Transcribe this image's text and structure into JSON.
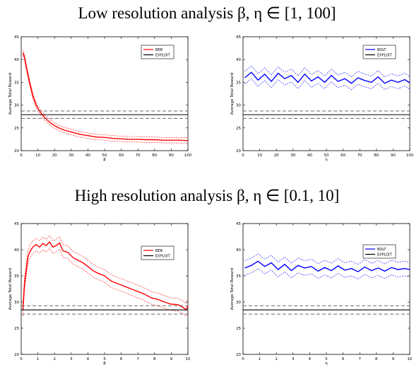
{
  "headings": {
    "low": "Low resolution analysis β, η ∈ [1, 100]",
    "high": "High resolution analysis β, η ∈ [0.1, 10]"
  },
  "colors": {
    "beb": "#ff0000",
    "bolt": "#0000ff",
    "exploit": "#000000",
    "exploit_band": "#555555"
  },
  "chart_data": [
    {
      "type": "line",
      "id": "low-beb",
      "xlabel": "β",
      "ylabel": "Average Total Reward",
      "xlim": [
        0,
        100
      ],
      "ylim": [
        20,
        45
      ],
      "xticks": [
        0,
        10,
        20,
        30,
        40,
        50,
        60,
        70,
        80,
        90,
        100
      ],
      "yticks": [
        20,
        25,
        30,
        35,
        40,
        45
      ],
      "legend": {
        "placement": "top-right",
        "entries": [
          "BEB",
          "EXPLOIT"
        ]
      },
      "series": [
        {
          "name": "BEB",
          "color": "#ff0000",
          "band": 0.6,
          "x": [
            1,
            2,
            3,
            4,
            5,
            6,
            7,
            8,
            9,
            10,
            12,
            14,
            16,
            18,
            20,
            23,
            26,
            30,
            35,
            40,
            45,
            50,
            55,
            60,
            65,
            70,
            75,
            80,
            85,
            90,
            95,
            100
          ],
          "y": [
            41.5,
            40.5,
            38.5,
            36.8,
            35.0,
            33.5,
            32.0,
            31.0,
            30.0,
            29.3,
            28.2,
            27.3,
            26.6,
            26.0,
            25.5,
            24.9,
            24.5,
            24.1,
            23.6,
            23.3,
            23.0,
            22.9,
            22.7,
            22.6,
            22.5,
            22.5,
            22.4,
            22.4,
            22.3,
            22.3,
            22.3,
            22.2
          ]
        },
        {
          "name": "EXPLOIT",
          "color": "#000000",
          "constant": 27.9,
          "band": 0.8
        }
      ]
    },
    {
      "type": "line",
      "id": "low-bolt",
      "xlabel": "η",
      "ylabel": "Average Total Reward",
      "xlim": [
        0,
        100
      ],
      "ylim": [
        20,
        45
      ],
      "xticks": [
        0,
        10,
        20,
        30,
        40,
        50,
        60,
        70,
        80,
        90,
        100
      ],
      "yticks": [
        20,
        25,
        30,
        35,
        40,
        45
      ],
      "legend": {
        "placement": "top-right",
        "entries": [
          "BOLT",
          "EXPLOIT"
        ]
      },
      "series": [
        {
          "name": "BOLT",
          "color": "#0000ff",
          "band": 1.4,
          "x": [
            1,
            5,
            9,
            13,
            17,
            21,
            25,
            29,
            33,
            37,
            41,
            45,
            49,
            53,
            57,
            61,
            65,
            69,
            73,
            77,
            81,
            85,
            89,
            93,
            97,
            100
          ],
          "y": [
            36.0,
            37.2,
            35.5,
            36.8,
            35.2,
            37.0,
            35.8,
            36.5,
            35.0,
            36.8,
            35.3,
            36.2,
            35.0,
            36.5,
            35.2,
            35.8,
            34.8,
            36.0,
            35.4,
            35.0,
            36.2,
            34.8,
            35.5,
            35.0,
            35.6,
            34.9
          ]
        },
        {
          "name": "EXPLOIT",
          "color": "#000000",
          "constant": 27.9,
          "band": 0.8
        }
      ]
    },
    {
      "type": "line",
      "id": "high-beb",
      "xlabel": "β",
      "ylabel": "Average Total Reward",
      "xlim": [
        0,
        10
      ],
      "ylim": [
        20,
        45
      ],
      "xticks": [
        0,
        1,
        2,
        3,
        4,
        5,
        6,
        7,
        8,
        9,
        10
      ],
      "yticks": [
        20,
        25,
        30,
        35,
        40,
        45
      ],
      "legend": {
        "placement": "top-right",
        "entries": [
          "BEB",
          "EXPLOIT"
        ]
      },
      "series": [
        {
          "name": "BEB",
          "color": "#ff0000",
          "band": 1.2,
          "x": [
            0.1,
            0.2,
            0.3,
            0.4,
            0.5,
            0.7,
            0.9,
            1.1,
            1.3,
            1.5,
            1.7,
            1.9,
            2.1,
            2.3,
            2.5,
            2.8,
            3.1,
            3.4,
            3.7,
            4.0,
            4.3,
            4.6,
            5.0,
            5.4,
            5.8,
            6.2,
            6.6,
            7.0,
            7.4,
            7.8,
            8.2,
            8.6,
            9.0,
            9.4,
            9.7,
            9.9,
            10.0
          ],
          "y": [
            28.5,
            33.5,
            36.0,
            38.5,
            39.5,
            40.5,
            41.0,
            40.5,
            41.2,
            40.8,
            41.5,
            40.5,
            40.8,
            41.3,
            39.8,
            39.5,
            38.5,
            38.0,
            37.5,
            36.8,
            36.0,
            35.5,
            35.0,
            34.0,
            33.5,
            33.0,
            32.5,
            32.0,
            31.5,
            30.8,
            30.5,
            30.0,
            29.6,
            29.5,
            29.0,
            28.5,
            29.3
          ]
        },
        {
          "name": "EXPLOIT",
          "color": "#000000",
          "constant": 28.5,
          "band": 0.8
        }
      ]
    },
    {
      "type": "line",
      "id": "high-bolt",
      "xlabel": "η",
      "ylabel": "Average Total Reward",
      "xlim": [
        0,
        10
      ],
      "ylim": [
        20,
        45
      ],
      "xticks": [
        0,
        1,
        2,
        3,
        4,
        5,
        6,
        7,
        8,
        9,
        10
      ],
      "yticks": [
        20,
        25,
        30,
        35,
        40,
        45
      ],
      "legend": {
        "placement": "top-right",
        "entries": [
          "BOLT",
          "EXPLOIT"
        ]
      },
      "series": [
        {
          "name": "BOLT",
          "color": "#0000ff",
          "band": 1.4,
          "x": [
            0.1,
            0.5,
            0.9,
            1.3,
            1.7,
            2.1,
            2.5,
            2.9,
            3.3,
            3.7,
            4.1,
            4.5,
            4.9,
            5.3,
            5.7,
            6.1,
            6.5,
            6.9,
            7.3,
            7.7,
            8.1,
            8.5,
            8.9,
            9.3,
            9.7,
            10.0
          ],
          "y": [
            36.5,
            37.0,
            37.8,
            36.8,
            37.5,
            36.2,
            37.2,
            36.0,
            37.0,
            36.5,
            36.8,
            35.9,
            36.6,
            36.0,
            36.9,
            36.1,
            36.4,
            35.8,
            36.7,
            36.0,
            36.5,
            35.9,
            36.6,
            36.2,
            36.4,
            36.2
          ]
        },
        {
          "name": "EXPLOIT",
          "color": "#000000",
          "constant": 28.5,
          "band": 0.8
        }
      ]
    }
  ]
}
